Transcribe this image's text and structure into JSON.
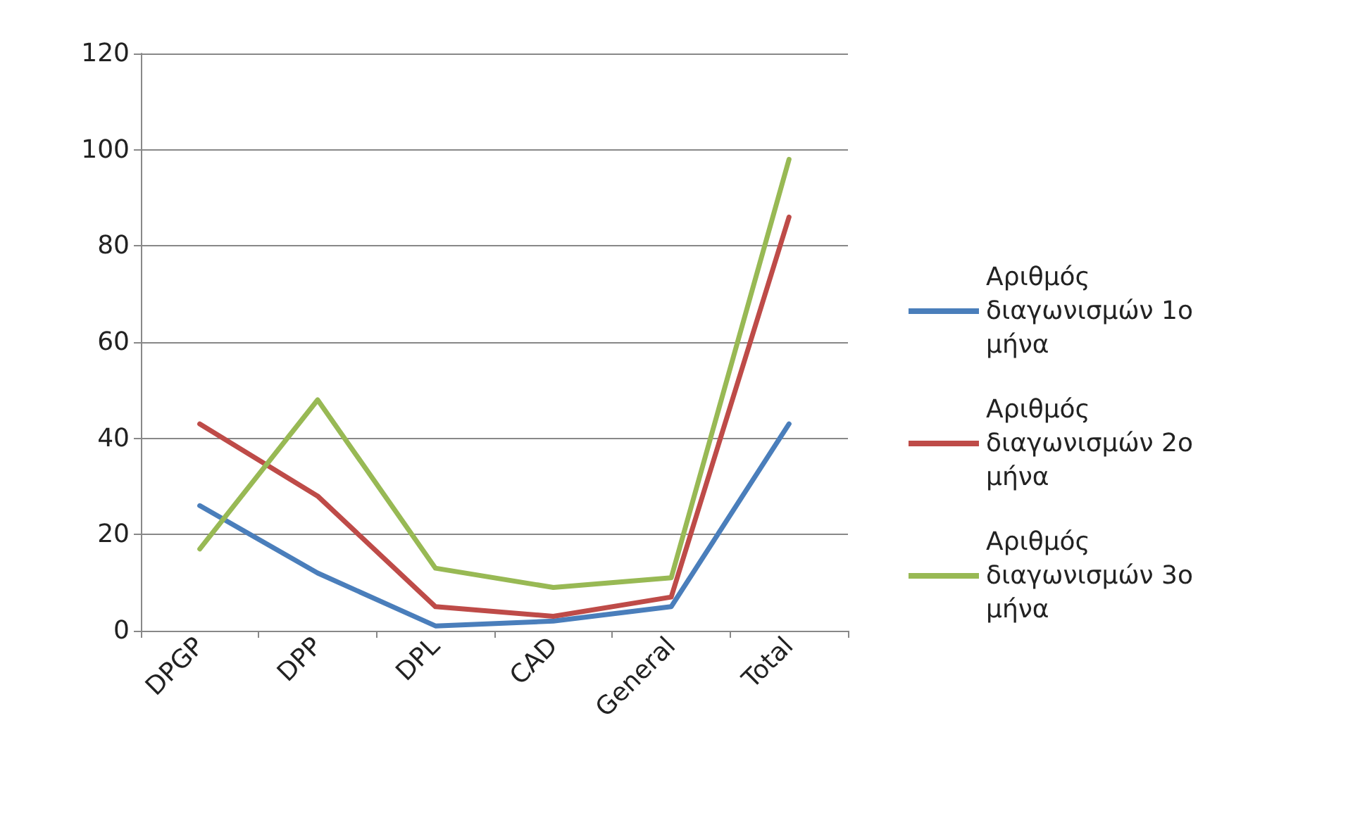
{
  "chart_data": {
    "type": "line",
    "categories": [
      "DPGP",
      "DPP",
      "DPL",
      "CAD",
      "General",
      "Total"
    ],
    "series": [
      {
        "name": "Αριθμός διαγωνισμών 1ο μήνα",
        "color": "#4a7ebb",
        "values": [
          26,
          12,
          1,
          2,
          5,
          43
        ]
      },
      {
        "name": "Αριθμός διαγωνισμών 2ο μήνα",
        "color": "#be4b48",
        "values": [
          43,
          28,
          5,
          3,
          7,
          86
        ]
      },
      {
        "name": "Αριθμός διαγωνισμών 3ο μήνα",
        "color": "#98b954",
        "values": [
          17,
          48,
          13,
          9,
          11,
          98
        ]
      }
    ],
    "ylim": [
      0,
      120
    ],
    "yticks": [
      0,
      20,
      40,
      60,
      80,
      100,
      120
    ],
    "grid": "y",
    "legend": "right",
    "marker": "none",
    "line_style": "solid"
  }
}
